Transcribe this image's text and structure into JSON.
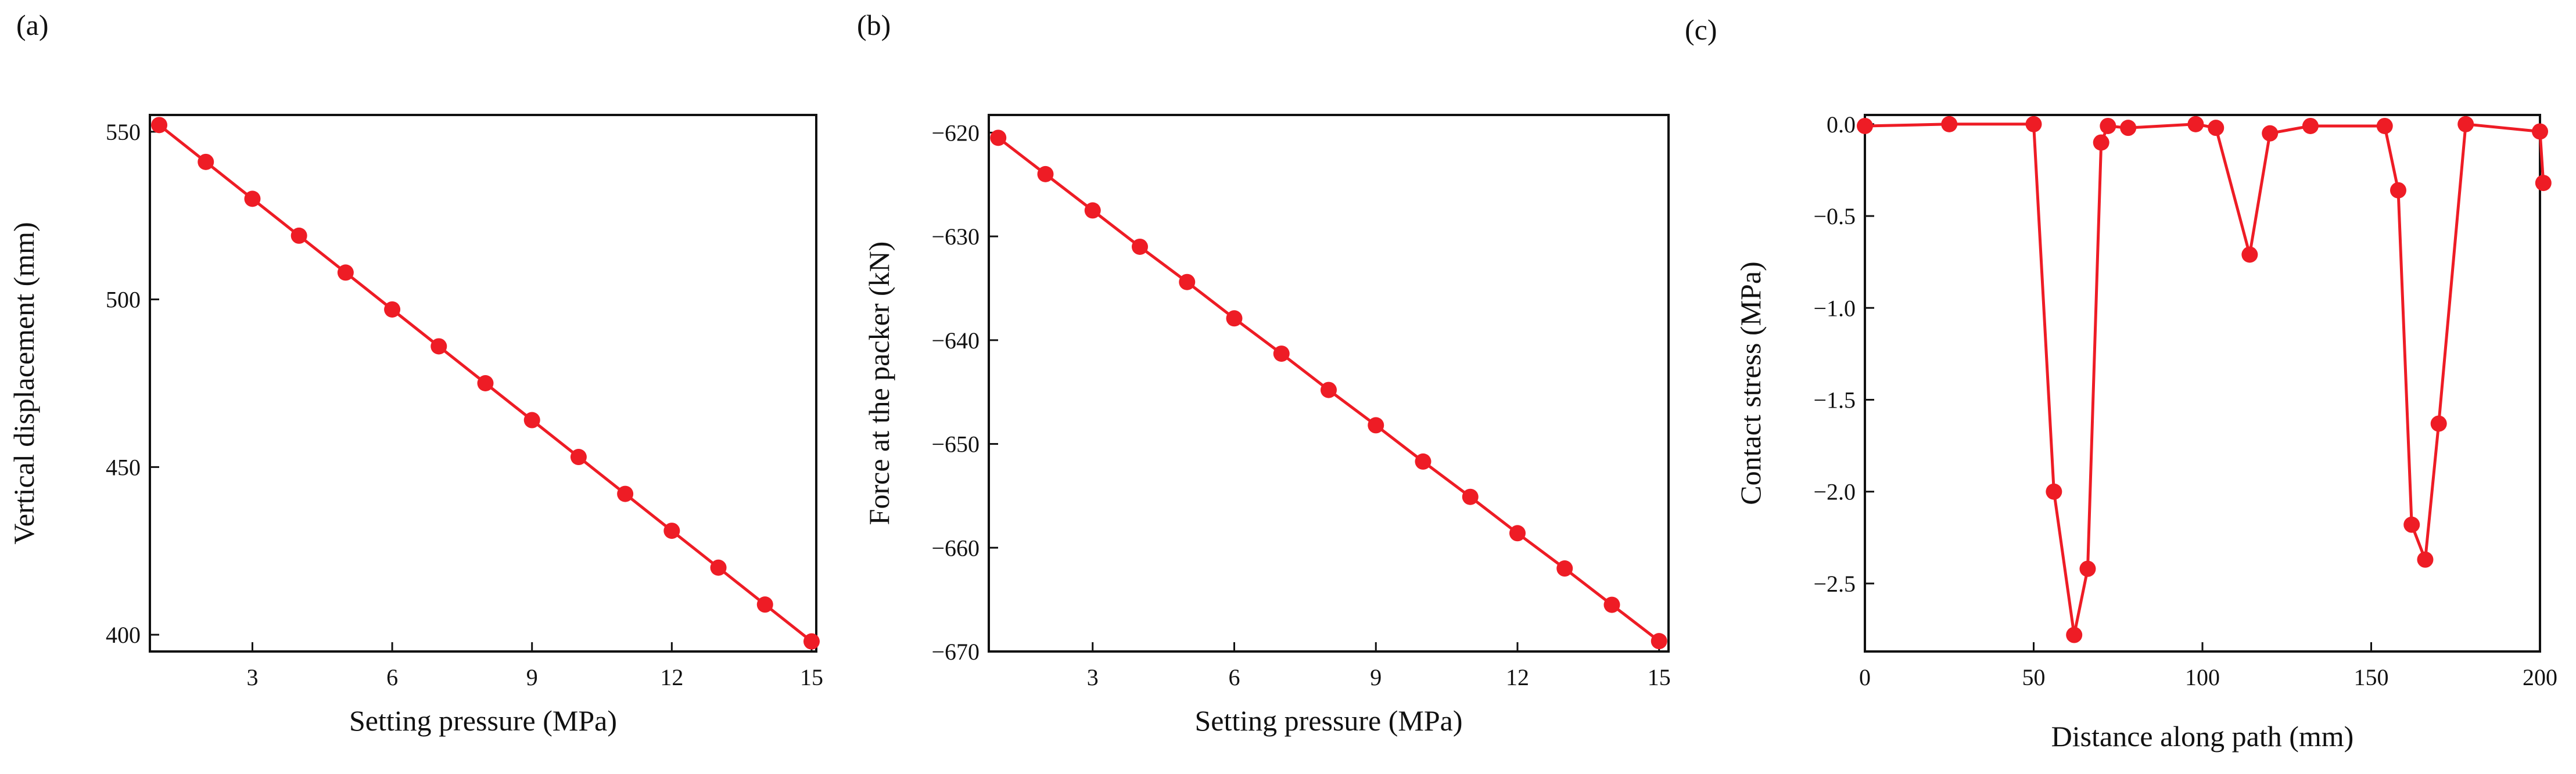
{
  "chart_data": [
    {
      "panel_label": "(a)",
      "type": "line",
      "xlabel": "Setting pressure (MPa)",
      "ylabel": "Vertical displacement (mm)",
      "xlim": [
        0.8,
        15.1
      ],
      "ylim": [
        395,
        555
      ],
      "xticks": [
        3,
        6,
        9,
        12,
        15
      ],
      "yticks": [
        400,
        450,
        500,
        550
      ],
      "grid": false,
      "marker": "circle",
      "color": "#ee1c25",
      "series": [
        {
          "x": [
            1,
            2,
            3,
            4,
            5,
            6,
            7,
            8,
            9,
            10,
            11,
            12,
            13,
            14,
            15
          ],
          "values": [
            552,
            541,
            530,
            519,
            508,
            497,
            486,
            475,
            464,
            453,
            442,
            431,
            420,
            409,
            398
          ]
        }
      ]
    },
    {
      "panel_label": "(b)",
      "type": "line",
      "xlabel": "Setting pressure (MPa)",
      "ylabel": "Force at the packer (kN)",
      "xlim": [
        0.8,
        15.2
      ],
      "ylim": [
        -670,
        -618.3
      ],
      "xticks": [
        3,
        6,
        9,
        12,
        15
      ],
      "yticks": [
        -620,
        -630,
        -640,
        -650,
        -660,
        -670
      ],
      "grid": false,
      "marker": "circle",
      "color": "#ee1c25",
      "series": [
        {
          "x": [
            1,
            2,
            3,
            4,
            5,
            6,
            7,
            8,
            9,
            10,
            11,
            12,
            13,
            14,
            15
          ],
          "values": [
            -620.5,
            -624.0,
            -627.5,
            -631.0,
            -634.4,
            -637.9,
            -641.3,
            -644.8,
            -648.2,
            -651.7,
            -655.1,
            -658.6,
            -662.0,
            -665.5,
            -669.0
          ]
        }
      ]
    },
    {
      "panel_label": "(c)",
      "type": "line",
      "xlabel": "Distance along path (mm)",
      "ylabel": "Contact stress (MPa)",
      "xlim": [
        0,
        200
      ],
      "ylim": [
        -2.87,
        0.05
      ],
      "xticks": [
        0,
        50,
        100,
        150,
        200
      ],
      "yticks": [
        0.0,
        -0.5,
        -1.0,
        -1.5,
        -2.0,
        -2.5
      ],
      "grid": false,
      "marker": "circle",
      "color": "#ee1c25",
      "series": [
        {
          "x": [
            0,
            25,
            50,
            56,
            62,
            66,
            70,
            72,
            78,
            98,
            104,
            114,
            120,
            132,
            154,
            158,
            162,
            166,
            170,
            178,
            200,
            201
          ],
          "values": [
            -0.01,
            0.0,
            0.0,
            -2.0,
            -2.78,
            -2.42,
            -0.1,
            -0.01,
            -0.02,
            0.0,
            -0.02,
            -0.71,
            -0.05,
            -0.01,
            -0.01,
            -0.36,
            -2.18,
            -2.37,
            -1.63,
            0.0,
            -0.04,
            -0.32
          ]
        }
      ]
    }
  ]
}
